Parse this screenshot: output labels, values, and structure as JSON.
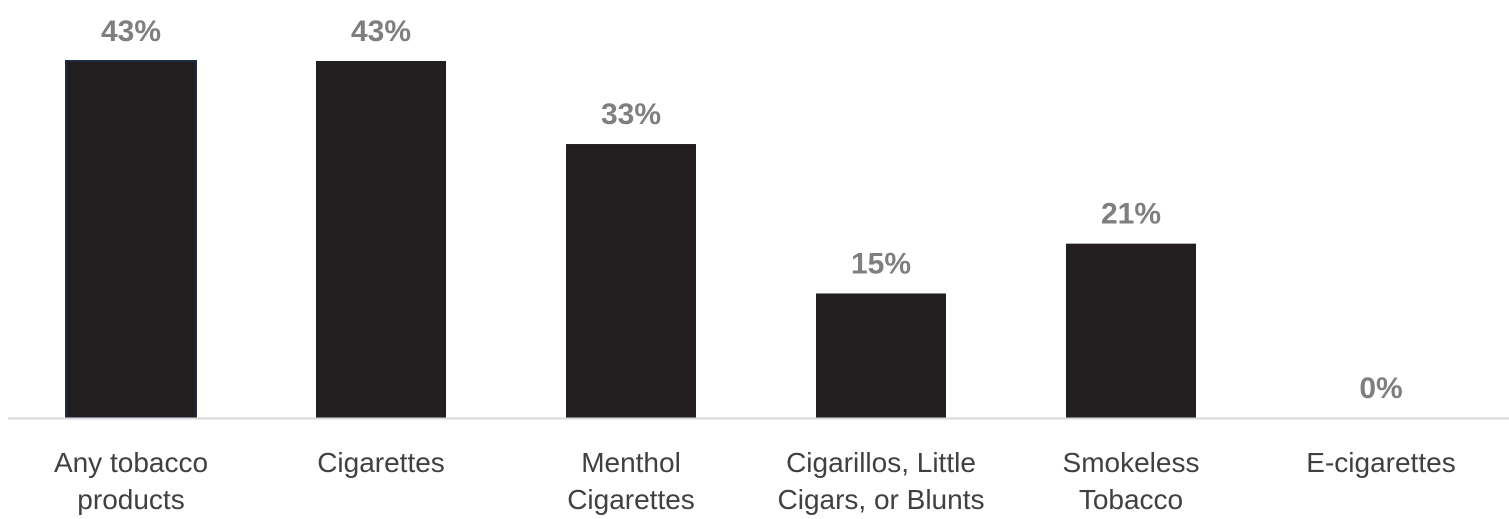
{
  "chart_data": {
    "type": "bar",
    "categories": [
      [
        "Any tobacco",
        "products"
      ],
      [
        "Cigarettes"
      ],
      [
        "Menthol",
        "Cigarettes"
      ],
      [
        "Cigarillos, Little",
        "Cigars, or Blunts"
      ],
      [
        "Smokeless",
        "Tobacco"
      ],
      [
        "E-cigarettes"
      ]
    ],
    "values": [
      43,
      43,
      33,
      15,
      21,
      0
    ],
    "value_labels": [
      "43%",
      "43%",
      "33%",
      "15%",
      "21%",
      "0%"
    ],
    "ylim": [
      0,
      43
    ],
    "grid": false,
    "legend": "none",
    "colors": {
      "bar": "#231f20",
      "first_bar_outline": "#1f2a44",
      "value_label": "#7f7f7f",
      "tick_label": "#404040",
      "axis": "#d9d9d9"
    }
  }
}
